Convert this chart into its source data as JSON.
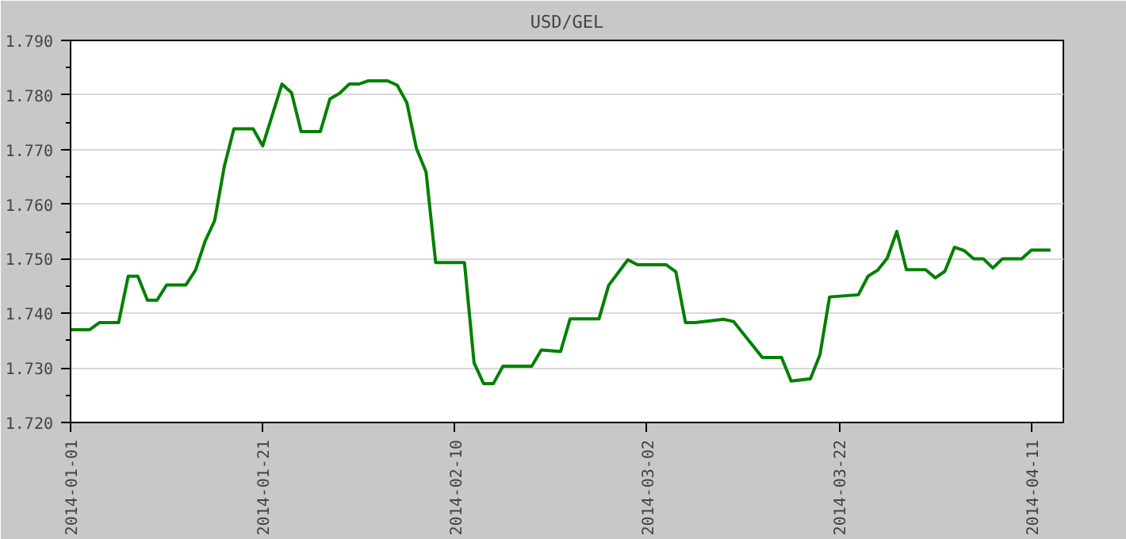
{
  "chart_data": {
    "type": "line",
    "title": "USD/GEL",
    "x": [
      "2014-01-01",
      "2014-01-03",
      "2014-01-04",
      "2014-01-06",
      "2014-01-07",
      "2014-01-08",
      "2014-01-09",
      "2014-01-10",
      "2014-01-11",
      "2014-01-13",
      "2014-01-14",
      "2014-01-15",
      "2014-01-16",
      "2014-01-17",
      "2014-01-18",
      "2014-01-20",
      "2014-01-21",
      "2014-01-23",
      "2014-01-24",
      "2014-01-25",
      "2014-01-27",
      "2014-01-28",
      "2014-01-29",
      "2014-01-30",
      "2014-01-31",
      "2014-02-01",
      "2014-02-03",
      "2014-02-04",
      "2014-02-05",
      "2014-02-06",
      "2014-02-07",
      "2014-02-08",
      "2014-02-11",
      "2014-02-12",
      "2014-02-13",
      "2014-02-14",
      "2014-02-15",
      "2014-02-18",
      "2014-02-19",
      "2014-02-21",
      "2014-02-22",
      "2014-02-25",
      "2014-02-26",
      "2014-02-28",
      "2014-03-01",
      "2014-03-04",
      "2014-03-05",
      "2014-03-06",
      "2014-03-07",
      "2014-03-10",
      "2014-03-11",
      "2014-03-14",
      "2014-03-16",
      "2014-03-17",
      "2014-03-19",
      "2014-03-20",
      "2014-03-21",
      "2014-03-24",
      "2014-03-25",
      "2014-03-26",
      "2014-03-27",
      "2014-03-28",
      "2014-03-29",
      "2014-03-31",
      "2014-04-01",
      "2014-04-02",
      "2014-04-03",
      "2014-04-04",
      "2014-04-05",
      "2014-04-06",
      "2014-04-07",
      "2014-04-08",
      "2014-04-10",
      "2014-04-11",
      "2014-04-13"
    ],
    "series": [
      {
        "color": "#008000",
        "values": [
          1.737,
          1.737,
          1.7383,
          1.7383,
          1.7468,
          1.7468,
          1.7424,
          1.7424,
          1.7452,
          1.7452,
          1.7479,
          1.7532,
          1.757,
          1.7669,
          1.7738,
          1.7738,
          1.7707,
          1.782,
          1.7804,
          1.7733,
          1.7733,
          1.7793,
          1.7803,
          1.782,
          1.782,
          1.7826,
          1.7826,
          1.7818,
          1.7786,
          1.7702,
          1.7659,
          1.7493,
          1.7493,
          1.7309,
          1.7271,
          1.7271,
          1.7303,
          1.7303,
          1.7333,
          1.733,
          1.739,
          1.739,
          1.7451,
          1.7498,
          1.7489,
          1.7489,
          1.7476,
          1.7383,
          1.7383,
          1.7389,
          1.7385,
          1.7319,
          1.7319,
          1.7276,
          1.728,
          1.7324,
          1.743,
          1.7434,
          1.7468,
          1.7479,
          1.7501,
          1.755,
          1.748,
          1.748,
          1.7465,
          1.7477,
          1.7521,
          1.7515,
          1.75,
          1.75,
          1.7483,
          1.75,
          1.75,
          1.7516,
          1.7516
        ]
      }
    ],
    "xlim": [
      "2014-01-01",
      "2014-04-14T08:00"
    ],
    "xticks": [
      "2014-01-01",
      "2014-01-21",
      "2014-02-10",
      "2014-03-02",
      "2014-03-22",
      "2014-04-11"
    ],
    "ylim": [
      1.72,
      1.79
    ],
    "yticks": [
      {
        "value": 1.72,
        "label": "1.720"
      },
      {
        "value": 1.73,
        "label": "1.730"
      },
      {
        "value": 1.74,
        "label": "1.740"
      },
      {
        "value": 1.75,
        "label": "1.750"
      },
      {
        "value": 1.76,
        "label": "1.760"
      },
      {
        "value": 1.77,
        "label": "1.770"
      },
      {
        "value": 1.78,
        "label": "1.780"
      },
      {
        "value": 1.79,
        "label": "1.790"
      }
    ],
    "grid": "y",
    "marker": "none",
    "line_style": "solid"
  }
}
